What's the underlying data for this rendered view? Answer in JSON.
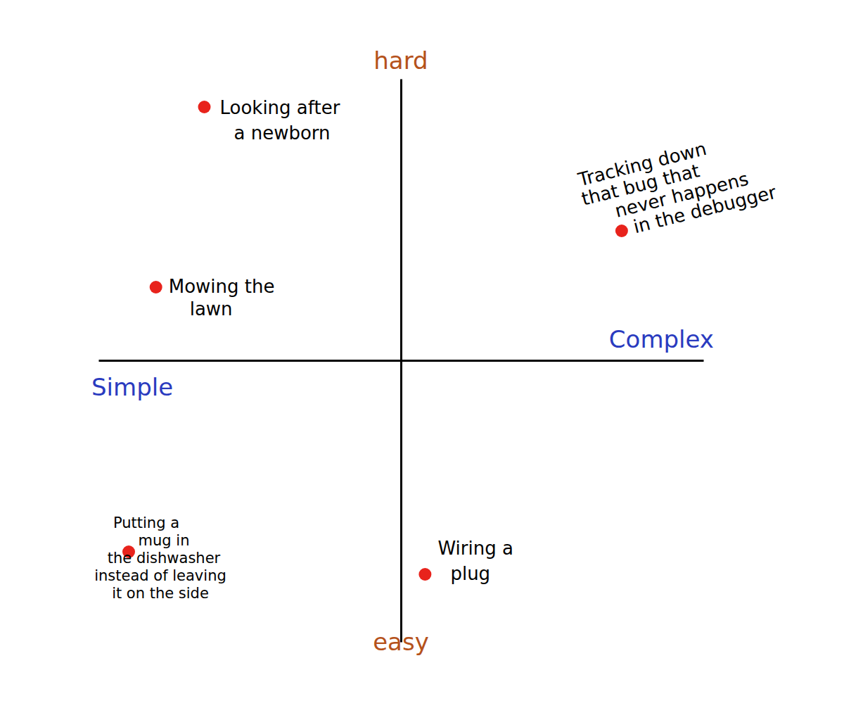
{
  "chart_data": {
    "type": "scatter",
    "xlabel": [
      "Simple",
      "Complex"
    ],
    "ylabel": [
      "easy",
      "hard"
    ],
    "x": [
      -0.65,
      -0.81,
      0.73,
      -0.9,
      0.08
    ],
    "values": [
      0.9,
      0.26,
      0.46,
      -0.68,
      -0.76
    ],
    "labels": [
      [
        "Looking after",
        "a newborn"
      ],
      [
        "Mowing the",
        "lawn"
      ],
      [
        "Tracking down",
        "that bug that",
        "never happens",
        "in the debugger"
      ],
      [
        "Putting a",
        "mug in",
        "the dishwasher",
        "instead of leaving",
        "it on the side"
      ],
      [
        "Wiring a",
        "plug"
      ]
    ],
    "color": "#e8231c",
    "xlim": [
      -1,
      1
    ],
    "ylim": [
      -1,
      1
    ],
    "xticks": [],
    "yticks": [],
    "grid": false,
    "tick_labels": false
  }
}
